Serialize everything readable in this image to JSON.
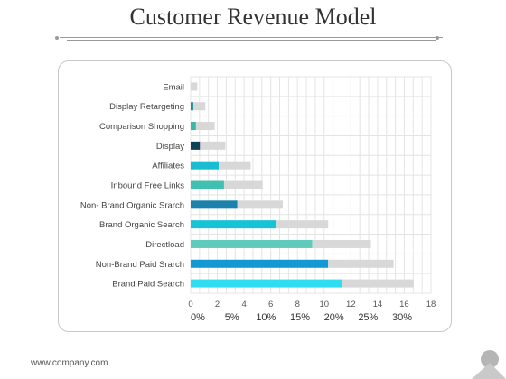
{
  "title": "Customer Revenue Model",
  "footer": "www.company.com",
  "chart_data": {
    "type": "bar",
    "orientation": "horizontal",
    "stacked": true,
    "categories": [
      "Email",
      "Display Retargeting",
      "Comparison Shopping",
      "Display",
      "Affiliates",
      "Inbound Free Links",
      "Non- Brand Organic  Srarch",
      "Brand Organic Search",
      "Directload",
      "Non-Brand Paid Srarch",
      "Brand Paid Search"
    ],
    "series": [
      {
        "values": [
          0,
          0.2,
          0.4,
          0.7,
          2.1,
          2.5,
          3.5,
          6.4,
          9.1,
          10.3,
          11.3
        ],
        "colors": [
          "#1fb3c9",
          "#1a8a9c",
          "#3bb7a5",
          "#0e4257",
          "#19bdd2",
          "#40c0b1",
          "#1a82ac",
          "#17c4d6",
          "#5ecbbc",
          "#1597d3",
          "#2fdcf0"
        ]
      },
      {
        "values": [
          0.5,
          0.9,
          1.4,
          1.9,
          2.4,
          2.9,
          3.4,
          3.9,
          4.4,
          4.9,
          5.4
        ],
        "color": "#d8d8d8"
      }
    ],
    "xlim": [
      0,
      18
    ],
    "xticks": [
      0,
      2,
      4,
      6,
      8,
      10,
      12,
      14,
      16,
      18
    ],
    "secondary_ticks": [
      "0%",
      "5%",
      "10%",
      "15%",
      "20%",
      "25%",
      "30%"
    ],
    "grid": true
  }
}
